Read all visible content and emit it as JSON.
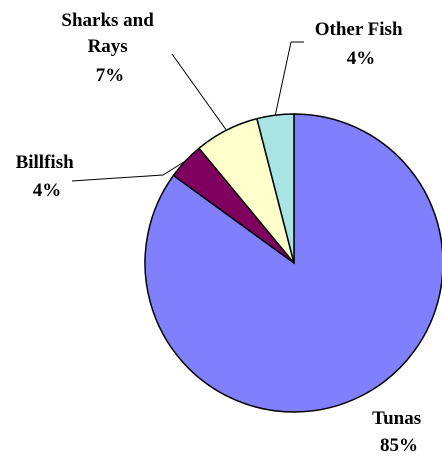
{
  "chart_data": {
    "type": "pie",
    "slices": [
      {
        "label": [
          "Tunas"
        ],
        "percent_label": "85%",
        "value": 85,
        "color": "#8080ff"
      },
      {
        "label": [
          "Billfish"
        ],
        "percent_label": "4%",
        "value": 4,
        "color": "#800060"
      },
      {
        "label": [
          "Sharks and",
          "Rays"
        ],
        "percent_label": "7%",
        "value": 7,
        "color": "#ffffcc"
      },
      {
        "label": [
          "Other Fish"
        ],
        "percent_label": "4%",
        "value": 4,
        "color": "#a8e4e4"
      }
    ]
  }
}
